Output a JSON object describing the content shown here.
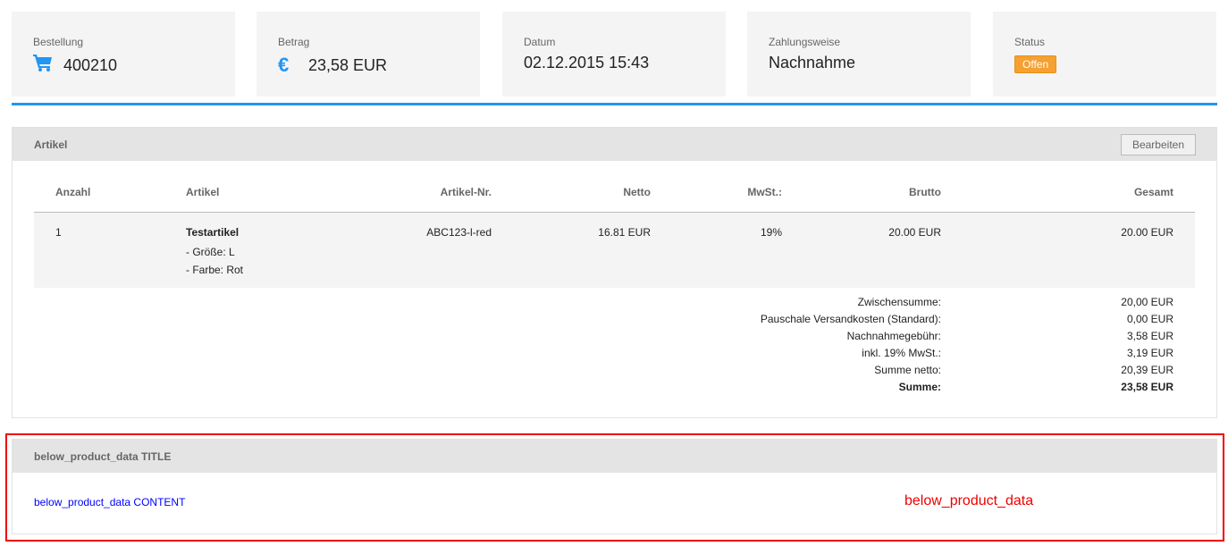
{
  "cards": [
    {
      "label": "Bestellung",
      "value": "400210",
      "icon": "cart-icon"
    },
    {
      "label": "Betrag",
      "value": "23,58 EUR",
      "icon": "euro-icon"
    },
    {
      "label": "Datum",
      "value": "02.12.2015 15:43"
    },
    {
      "label": "Zahlungsweise",
      "value": "Nachnahme"
    },
    {
      "label": "Status",
      "badge": "Offen",
      "badge_color": "#f5a030"
    }
  ],
  "accent": "#2196f3",
  "articles": {
    "title": "Artikel",
    "edit_label": "Bearbeiten",
    "columns": [
      "Anzahl",
      "Artikel",
      "Artikel-Nr.",
      "Netto",
      "MwSt.:",
      "Brutto",
      "Gesamt"
    ],
    "rows": [
      {
        "qty": "1",
        "name": "Testartikel",
        "opt1": "- Größe: L",
        "opt2": "- Farbe: Rot",
        "sku": "ABC123-l-red",
        "netto": "16.81 EUR",
        "tax": "19%",
        "brutto": "20.00 EUR",
        "total": "20.00 EUR"
      }
    ],
    "totals": [
      {
        "label": "Zwischensumme:",
        "value": "20,00 EUR"
      },
      {
        "label": "Pauschale Versandkosten (Standard):",
        "value": "0,00 EUR"
      },
      {
        "label": "Nachnahmegebühr:",
        "value": "3,58 EUR"
      },
      {
        "label": "inkl. 19% MwSt.:",
        "value": "3,19 EUR"
      },
      {
        "label": "Summe netto:",
        "value": "20,39 EUR"
      },
      {
        "label": "Summe:",
        "value": "23,58 EUR"
      }
    ]
  },
  "below": {
    "title": "below_product_data TITLE",
    "content": "below_product_data CONTENT",
    "marker": "below_product_data"
  }
}
